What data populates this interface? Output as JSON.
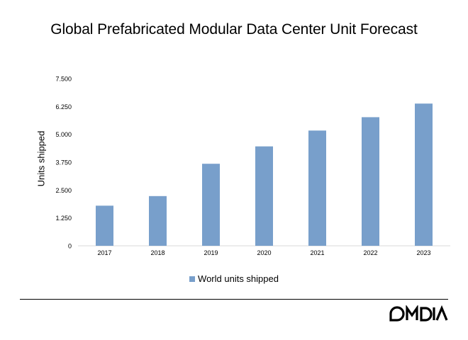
{
  "chart_data": {
    "type": "bar",
    "title": "Global Prefabricated Modular Data Center Unit Forecast",
    "ylabel": "Units shipped",
    "xlabel": "",
    "categories": [
      "2017",
      "2018",
      "2019",
      "2020",
      "2021",
      "2022",
      "2023"
    ],
    "series": [
      {
        "name": "World units shipped",
        "values": [
          1800,
          2230,
          3680,
          4460,
          5170,
          5770,
          6380
        ]
      }
    ],
    "ylim": [
      0,
      7500
    ],
    "yticks": [
      0,
      1250,
      2500,
      3750,
      5000,
      6250,
      7500
    ],
    "ytick_labels": [
      "0",
      "1.250",
      "2.500",
      "3.750",
      "5.000",
      "6.250",
      "7.500"
    ],
    "grid": false,
    "legend_position": "bottom",
    "bar_color": "#789fcb"
  },
  "brand": {
    "logo_text": "OMDIA"
  }
}
